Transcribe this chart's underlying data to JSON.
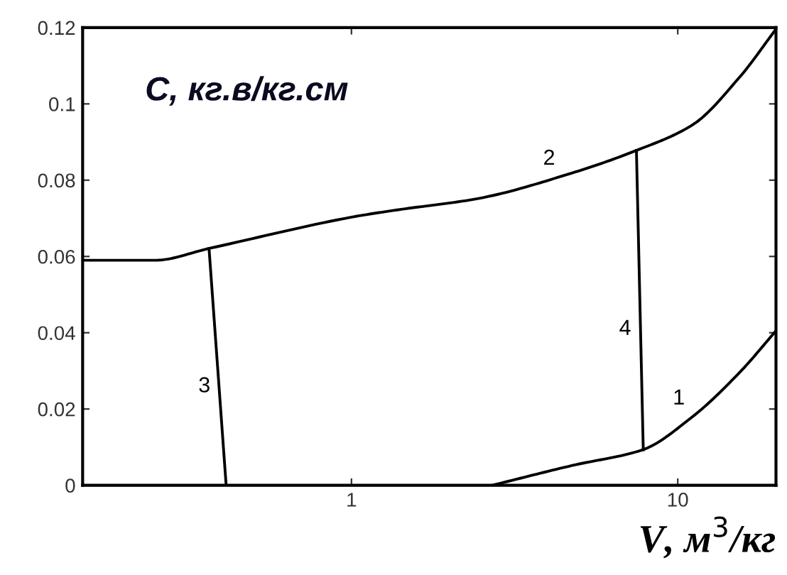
{
  "chart_data": {
    "type": "line",
    "title": "C, кг.в/кг.см",
    "xlabel": "V, м$^{3}$/кг",
    "log": "x",
    "xlim": [
      0.15,
      20
    ],
    "xticks": [
      1,
      10
    ],
    "ylim": [
      0,
      0.12
    ],
    "yticks": [
      0,
      0.02,
      0.04,
      0.06,
      0.08,
      {
        "value": 0.1,
        "label": "0.1"
      },
      0.12
    ],
    "grid": false,
    "legend": false,
    "marker": "none",
    "line_style": "solid",
    "series": [
      {
        "name": "1",
        "color": "#000000",
        "x": [
          2.7,
          4.75,
          7.8,
          11.1,
          15.4,
          20
        ],
        "values": [
          0,
          0.0052,
          0.0093,
          0.018,
          0.0294,
          0.0405
        ]
      },
      {
        "name": "2",
        "color": "#000000",
        "x": [
          0.15,
          0.25,
          0.366,
          1,
          1.38,
          2.45,
          4.75,
          7.47,
          11.1,
          15.4,
          20
        ],
        "values": [
          0.059,
          0.059,
          0.0621,
          0.0703,
          0.0722,
          0.0752,
          0.0819,
          0.0878,
          0.0945,
          0.1068,
          0.1196
        ]
      },
      {
        "name": "3",
        "color": "#000000",
        "x": [
          0.366,
          0.413
        ],
        "values": [
          0.0621,
          0
        ]
      },
      {
        "name": "4",
        "color": "#000000",
        "x": [
          7.47,
          7.84
        ],
        "values": [
          0.0878,
          0.0093
        ]
      }
    ]
  }
}
